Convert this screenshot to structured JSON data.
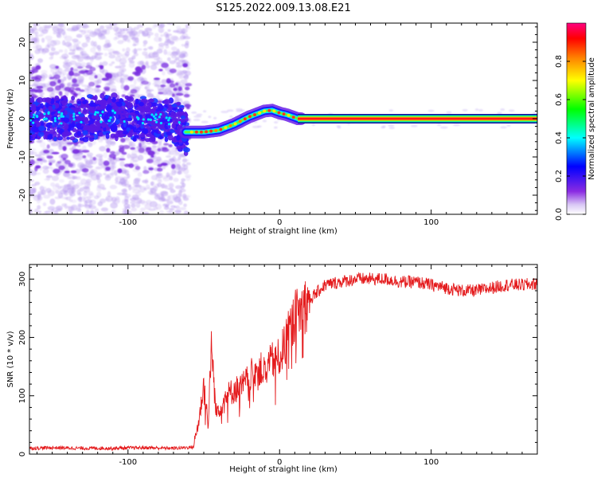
{
  "title": "S125.2022.009.13.08.E21",
  "chart_data": [
    {
      "type": "heatmap",
      "xlabel": "Height of straight line (km)",
      "ylabel": "Frequency (Hz)",
      "xlim": [
        -165,
        170
      ],
      "ylim": [
        -25,
        25
      ],
      "x_ticks": [
        -100,
        0,
        100
      ],
      "y_ticks": [
        -20,
        -10,
        0,
        10,
        20
      ],
      "colorbar": {
        "label": "Normalized spectral amplitude",
        "range": [
          0,
          1
        ],
        "ticks": [
          0.0,
          0.2,
          0.4,
          0.6,
          0.8
        ],
        "colormap": [
          "#ffffff",
          "#8a2be2",
          "#0000ff",
          "#00ffff",
          "#00ff00",
          "#ffff00",
          "#ff8000",
          "#ff0000",
          "#ff0080"
        ]
      },
      "ridge": [
        {
          "x": -165,
          "y": 0.0
        },
        {
          "x": -150,
          "y": 0.3
        },
        {
          "x": -130,
          "y": 0.0
        },
        {
          "x": -110,
          "y": 0.6
        },
        {
          "x": -90,
          "y": 0.0
        },
        {
          "x": -70,
          "y": -0.5
        },
        {
          "x": -62,
          "y": -3.5
        },
        {
          "x": -50,
          "y": -3.5
        },
        {
          "x": -40,
          "y": -3.0
        },
        {
          "x": -30,
          "y": -1.5
        },
        {
          "x": -20,
          "y": 0.5
        },
        {
          "x": -10,
          "y": 2.0
        },
        {
          "x": -5,
          "y": 2.2
        },
        {
          "x": 0,
          "y": 1.5
        },
        {
          "x": 5,
          "y": 1.0
        },
        {
          "x": 12,
          "y": 0.0
        },
        {
          "x": 170,
          "y": 0.0
        }
      ]
    },
    {
      "type": "line",
      "xlabel": "Height of straight line (km)",
      "ylabel": "SNR (10 * v/v)",
      "xlim": [
        -165,
        170
      ],
      "ylim": [
        0,
        325
      ],
      "x_ticks": [
        -100,
        0,
        100
      ],
      "y_ticks": [
        0,
        100,
        200,
        300
      ],
      "color": "#e41a1c",
      "series": [
        {
          "x": [
            -165,
            -150,
            -130,
            -110,
            -90,
            -70,
            -57,
            -53,
            -50,
            -47,
            -45,
            -42,
            -40,
            -35,
            -30,
            -25,
            -20,
            -15,
            -10,
            -5,
            0,
            5,
            10,
            15,
            20,
            30,
            40,
            50,
            60,
            70,
            80,
            90,
            100,
            110,
            120,
            130,
            140,
            150,
            160,
            170
          ],
          "y": [
            10,
            11,
            10,
            10,
            11,
            10,
            12,
            60,
            120,
            50,
            190,
            70,
            80,
            100,
            110,
            115,
            130,
            150,
            140,
            160,
            165,
            200,
            235,
            250,
            265,
            290,
            295,
            300,
            300,
            300,
            295,
            295,
            290,
            285,
            280,
            280,
            285,
            290,
            290,
            292
          ]
        }
      ]
    }
  ]
}
